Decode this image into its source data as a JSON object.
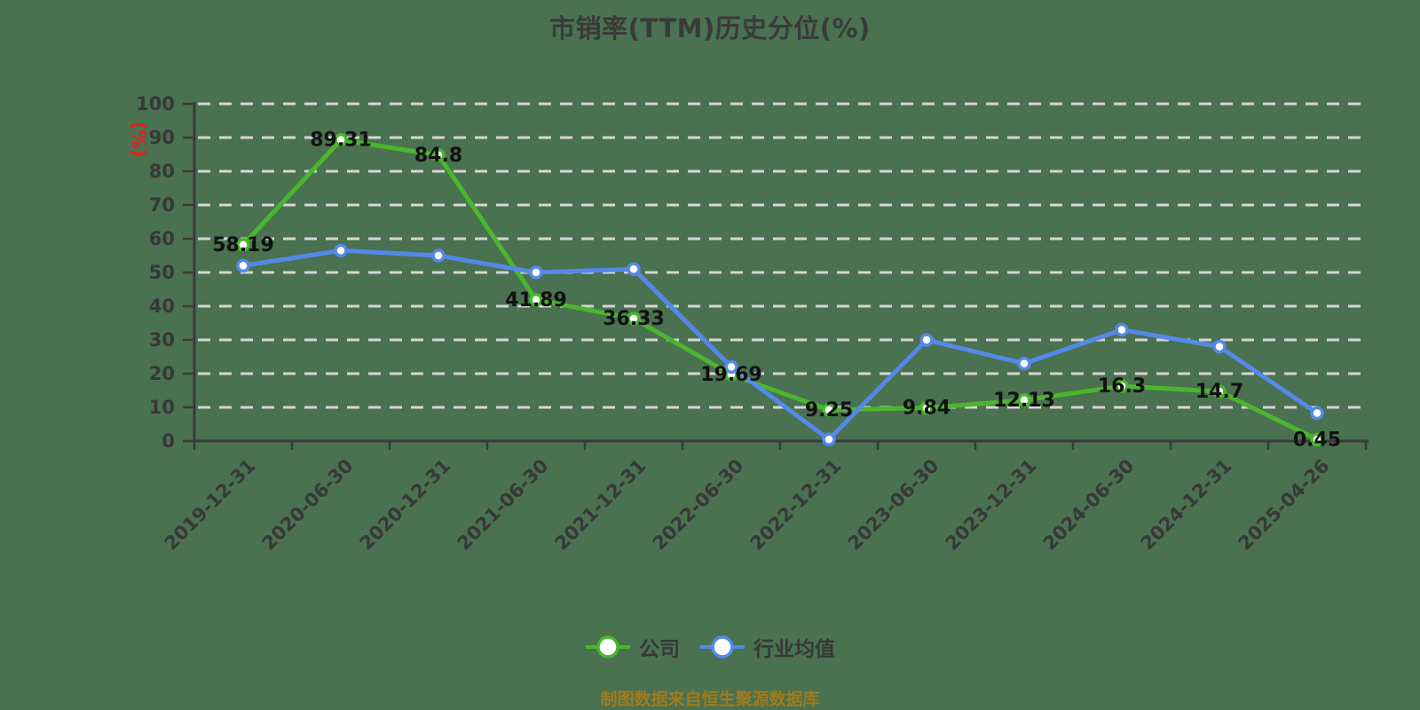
{
  "page": {
    "background_color": "#4a7150"
  },
  "chart_data": {
    "type": "line",
    "title": "市销率(TTM)历史分位(%)",
    "title_color": "#3a3a3a",
    "ylabel": "(%)",
    "ylabel_color": "#e02020",
    "xlabel": "",
    "ylim": [
      0,
      100
    ],
    "ytick_step": 10,
    "grid": "horizontal-dashed",
    "gridline_color": "#d5d5d5",
    "axis_color": "#3a3a3a",
    "axis_text_color": "#383838",
    "point_label_color": "#111111",
    "marker_style": "white-filled-circle",
    "legend_position": "bottom-center",
    "categories": [
      "2019-12-31",
      "2020-06-30",
      "2020-12-31",
      "2021-06-30",
      "2021-12-31",
      "2022-06-30",
      "2022-12-31",
      "2023-06-30",
      "2023-12-31",
      "2024-06-30",
      "2024-12-31",
      "2025-04-26"
    ],
    "series": [
      {
        "name": "公司",
        "color": "#4ab62e",
        "show_point_labels": true,
        "values": [
          58.19,
          89.31,
          84.8,
          41.89,
          36.33,
          19.69,
          9.25,
          9.84,
          12.13,
          16.3,
          14.7,
          0.45
        ]
      },
      {
        "name": "行业均值",
        "color": "#5589e8",
        "show_point_labels": false,
        "values_are_estimated": true,
        "values": [
          52,
          56.5,
          55,
          50,
          51,
          22,
          0.5,
          30,
          23,
          33,
          28,
          8.3
        ]
      }
    ],
    "source_note": "制图数据来自恒生聚源数据库",
    "source_note_color": "#9e7b1e"
  }
}
